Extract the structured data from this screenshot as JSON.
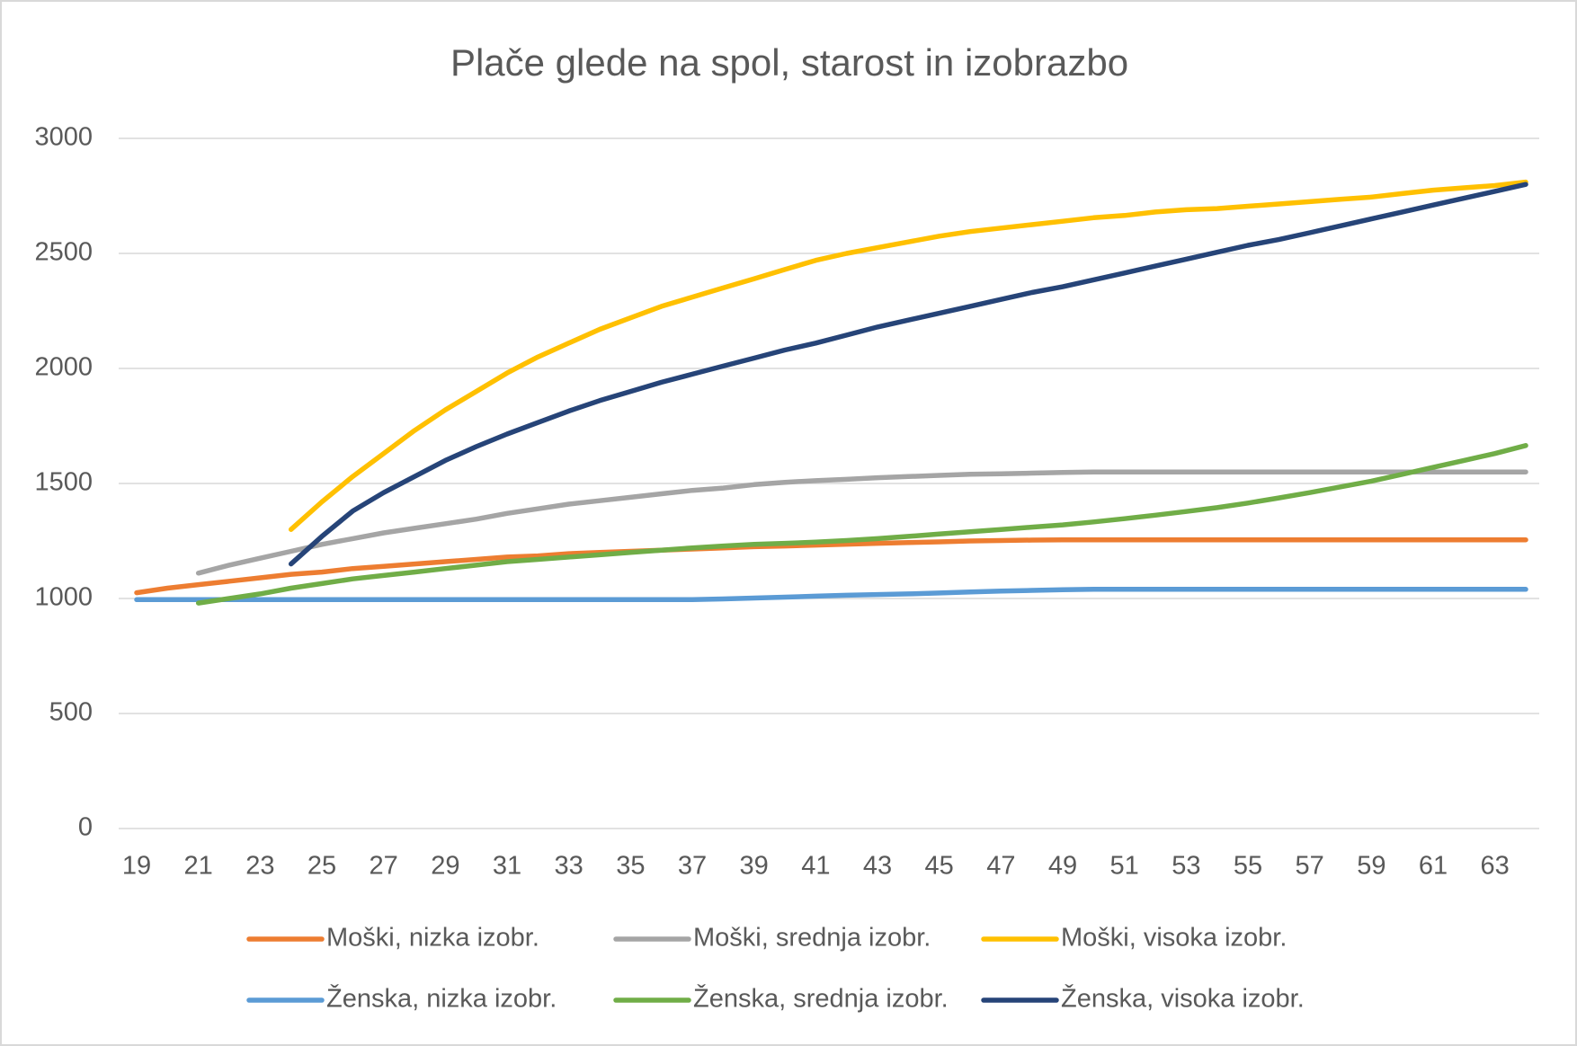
{
  "chart_data": {
    "type": "line",
    "title": "Plače glede na spol, starost in izobrazbo",
    "categories": [
      19,
      null,
      21,
      null,
      23,
      null,
      25,
      null,
      27,
      null,
      29,
      null,
      31,
      null,
      33,
      null,
      35,
      null,
      37,
      null,
      39,
      null,
      41,
      null,
      43,
      null,
      45,
      null,
      47,
      null,
      49,
      null,
      51,
      null,
      53,
      null,
      55,
      null,
      57,
      null,
      59,
      null,
      61,
      null,
      63,
      null
    ],
    "ylim": [
      0,
      3000
    ],
    "yticks": [
      0,
      500,
      1000,
      1500,
      2000,
      2500,
      3000
    ],
    "grid": true,
    "legend": "bottom",
    "series": [
      {
        "name": "Moški, nizka izobr.",
        "color": "#ed7d31",
        "values": [
          1025,
          1045,
          1060,
          1075,
          1090,
          1105,
          1115,
          1130,
          1140,
          1150,
          1160,
          1170,
          1180,
          1185,
          1195,
          1200,
          1205,
          1210,
          1215,
          1220,
          1225,
          1228,
          1232,
          1236,
          1240,
          1243,
          1246,
          1250,
          1252,
          1254,
          1255,
          1255,
          1255,
          1255,
          1255,
          1255,
          1255,
          1255,
          1255,
          1255,
          1255,
          1255,
          1255,
          1255,
          1255,
          1255
        ]
      },
      {
        "name": "Moški, srednja izobr.",
        "color": "#a5a5a5",
        "values": [
          null,
          null,
          1110,
          1145,
          1175,
          1205,
          1235,
          1260,
          1285,
          1305,
          1325,
          1345,
          1370,
          1390,
          1410,
          1425,
          1440,
          1455,
          1470,
          1480,
          1495,
          1505,
          1512,
          1518,
          1525,
          1530,
          1535,
          1540,
          1542,
          1545,
          1548,
          1550,
          1550,
          1550,
          1550,
          1550,
          1550,
          1550,
          1550,
          1550,
          1550,
          1550,
          1550,
          1550,
          1550,
          1550
        ]
      },
      {
        "name": "Moški, visoka izobr.",
        "color": "#ffc000",
        "values": [
          null,
          null,
          null,
          null,
          null,
          1300,
          1420,
          1530,
          1630,
          1730,
          1820,
          1900,
          1980,
          2050,
          2110,
          2170,
          2220,
          2270,
          2310,
          2350,
          2390,
          2430,
          2470,
          2500,
          2525,
          2550,
          2575,
          2595,
          2610,
          2625,
          2640,
          2655,
          2665,
          2680,
          2690,
          2695,
          2705,
          2715,
          2725,
          2735,
          2745,
          2760,
          2775,
          2785,
          2795,
          2810
        ]
      },
      {
        "name": "Ženska, nizka izobr.",
        "color": "#5b9bd5",
        "values": [
          995,
          995,
          995,
          995,
          995,
          995,
          995,
          995,
          995,
          995,
          995,
          995,
          995,
          995,
          995,
          995,
          995,
          995,
          995,
          998,
          1002,
          1006,
          1010,
          1014,
          1017,
          1020,
          1024,
          1028,
          1032,
          1035,
          1038,
          1040,
          1040,
          1040,
          1040,
          1040,
          1040,
          1040,
          1040,
          1040,
          1040,
          1040,
          1040,
          1040,
          1040,
          1040
        ]
      },
      {
        "name": "Ženska, srednja izobr.",
        "color": "#70ad47",
        "values": [
          null,
          null,
          980,
          1000,
          1020,
          1045,
          1065,
          1085,
          1100,
          1115,
          1130,
          1145,
          1160,
          1170,
          1180,
          1190,
          1200,
          1210,
          1220,
          1228,
          1235,
          1240,
          1245,
          1252,
          1260,
          1270,
          1280,
          1290,
          1300,
          1310,
          1320,
          1333,
          1347,
          1362,
          1378,
          1395,
          1415,
          1437,
          1460,
          1485,
          1510,
          1540,
          1570,
          1600,
          1630,
          1665
        ]
      },
      {
        "name": "Ženska, visoka izobr.",
        "color": "#264478",
        "values": [
          null,
          null,
          null,
          null,
          null,
          1150,
          1270,
          1380,
          1460,
          1530,
          1600,
          1660,
          1715,
          1765,
          1815,
          1860,
          1900,
          1940,
          1975,
          2010,
          2045,
          2080,
          2110,
          2145,
          2180,
          2210,
          2240,
          2270,
          2300,
          2330,
          2355,
          2385,
          2415,
          2445,
          2475,
          2505,
          2535,
          2560,
          2590,
          2620,
          2650,
          2680,
          2710,
          2740,
          2770,
          2800
        ]
      }
    ]
  }
}
